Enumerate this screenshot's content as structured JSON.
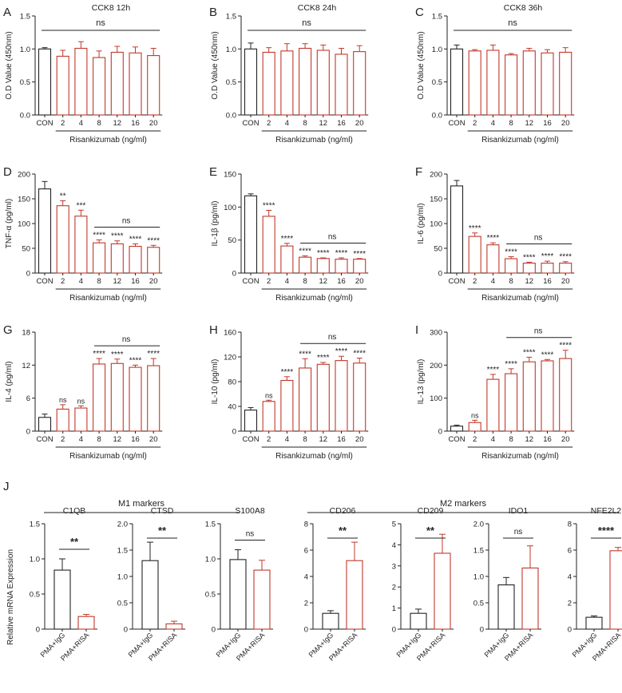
{
  "colors": {
    "control": "#222222",
    "treated": "#c0392b",
    "axis": "#222222"
  },
  "x_categories": [
    "CON",
    "2",
    "4",
    "8",
    "12",
    "16",
    "20"
  ],
  "x_axis_label": "Risankizumab (ng/ml)",
  "significance_ns": "ns",
  "section_j": {
    "m1_label": "M1 markers",
    "m2_label": "M2 markers",
    "ylabel": "Relative mRNA Expression",
    "groups": [
      "PMA+IgG",
      "PMA+RISA"
    ]
  },
  "chart_data": [
    {
      "type": "bar",
      "panel": "A",
      "title": "CCK8 12h",
      "ylabel": "O.D Value (450nm)",
      "ylim": [
        0,
        1.5
      ],
      "yticks": [
        "0.0",
        "0.5",
        "1.0",
        "1.5"
      ],
      "values": [
        1.0,
        0.89,
        1.01,
        0.87,
        0.95,
        0.94,
        0.9
      ],
      "errors": [
        0.02,
        0.09,
        0.1,
        0.1,
        0.09,
        0.09,
        0.11
      ],
      "annotations": [
        "",
        "",
        "",
        "",
        "",
        "",
        ""
      ],
      "global_sig": "ns",
      "group_sig": ""
    },
    {
      "type": "bar",
      "panel": "B",
      "title": "CCK8 24h",
      "ylabel": "O.D Value (450nm)",
      "ylim": [
        0,
        1.5
      ],
      "yticks": [
        "0.0",
        "0.5",
        "1.0",
        "1.5"
      ],
      "values": [
        1.0,
        0.95,
        0.97,
        1.01,
        0.98,
        0.92,
        0.96
      ],
      "errors": [
        0.09,
        0.07,
        0.11,
        0.07,
        0.08,
        0.09,
        0.09
      ],
      "annotations": [
        "",
        "",
        "",
        "",
        "",
        "",
        ""
      ],
      "global_sig": "ns",
      "group_sig": ""
    },
    {
      "type": "bar",
      "panel": "C",
      "title": "CCK8 36h",
      "ylabel": "O.D Value (450nm)",
      "ylim": [
        0,
        1.5
      ],
      "yticks": [
        "0.0",
        "0.5",
        "1.0",
        "1.5"
      ],
      "values": [
        1.0,
        0.97,
        0.98,
        0.91,
        0.97,
        0.94,
        0.95
      ],
      "errors": [
        0.06,
        0.02,
        0.08,
        0.02,
        0.04,
        0.05,
        0.07
      ],
      "annotations": [
        "",
        "",
        "",
        "",
        "",
        "",
        ""
      ],
      "global_sig": "ns",
      "group_sig": ""
    },
    {
      "type": "bar",
      "panel": "D",
      "title": "",
      "ylabel": "TNF-α (pg/ml)",
      "ylim": [
        0,
        200
      ],
      "yticks": [
        "0",
        "50",
        "100",
        "150",
        "200"
      ],
      "values": [
        170,
        136,
        115,
        61,
        59,
        54,
        52
      ],
      "errors": [
        15,
        10,
        12,
        6,
        6,
        5,
        4
      ],
      "annotations": [
        "",
        "**",
        "***",
        "****",
        "****",
        "****",
        "****"
      ],
      "global_sig": "",
      "group_sig": "ns"
    },
    {
      "type": "bar",
      "panel": "E",
      "title": "",
      "ylabel": "IL-1β (pg/ml)",
      "ylim": [
        0,
        150
      ],
      "yticks": [
        "0",
        "50",
        "100",
        "150"
      ],
      "values": [
        117,
        86,
        41,
        24,
        22,
        21,
        21
      ],
      "errors": [
        3,
        9,
        4,
        2,
        1,
        2,
        1
      ],
      "annotations": [
        "",
        "****",
        "****",
        "****",
        "****",
        "****",
        "****"
      ],
      "global_sig": "",
      "group_sig": "ns"
    },
    {
      "type": "bar",
      "panel": "F",
      "title": "",
      "ylabel": "IL-6 (pg/ml)",
      "ylim": [
        0,
        200
      ],
      "yticks": [
        "0",
        "50",
        "100",
        "150",
        "200"
      ],
      "values": [
        176,
        74,
        57,
        29,
        20,
        20,
        20
      ],
      "errors": [
        11,
        7,
        4,
        4,
        2,
        4,
        3
      ],
      "annotations": [
        "",
        "****",
        "****",
        "****",
        "****",
        "****",
        "****"
      ],
      "global_sig": "",
      "group_sig": "ns"
    },
    {
      "type": "bar",
      "panel": "G",
      "title": "",
      "ylabel": "IL-4 (pg/ml)",
      "ylim": [
        0,
        18
      ],
      "yticks": [
        "0",
        "6",
        "12",
        "18"
      ],
      "values": [
        2.5,
        4.0,
        4.2,
        12.2,
        12.3,
        11.6,
        11.9
      ],
      "errors": [
        0.6,
        0.8,
        0.4,
        1.0,
        0.8,
        0.4,
        1.3
      ],
      "annotations": [
        "",
        "ns",
        "ns",
        "****",
        "****",
        "****",
        "****"
      ],
      "global_sig": "",
      "group_sig": "ns"
    },
    {
      "type": "bar",
      "panel": "H",
      "title": "",
      "ylabel": "IL-10 (pg/ml)",
      "ylim": [
        0,
        160
      ],
      "yticks": [
        "0",
        "40",
        "80",
        "120",
        "160"
      ],
      "values": [
        34,
        48,
        82,
        102,
        108,
        114,
        110
      ],
      "errors": [
        4,
        2,
        6,
        15,
        3,
        7,
        8
      ],
      "annotations": [
        "",
        "ns",
        "****",
        "****",
        "****",
        "****",
        "****"
      ],
      "global_sig": "",
      "group_sig": "ns"
    },
    {
      "type": "bar",
      "panel": "I",
      "title": "",
      "ylabel": "IL-13 (pg/ml)",
      "ylim": [
        0,
        300
      ],
      "yticks": [
        "0",
        "100",
        "200",
        "300"
      ],
      "values": [
        15,
        26,
        157,
        174,
        210,
        213,
        220
      ],
      "errors": [
        3,
        7,
        15,
        15,
        14,
        4,
        25
      ],
      "annotations": [
        "",
        "ns",
        "****",
        "****",
        "****",
        "****",
        "****"
      ],
      "global_sig": "",
      "group_sig": "ns"
    },
    {
      "type": "bar",
      "panel": "J",
      "title": "C1QB",
      "ylim": [
        0,
        1.5
      ],
      "yticks": [
        "0",
        "0.5",
        "1.0",
        "1.5"
      ],
      "values": [
        0.84,
        0.18
      ],
      "errors": [
        0.16,
        0.03
      ],
      "sig": "**"
    },
    {
      "type": "bar",
      "panel": "J",
      "title": "CTSD",
      "ylim": [
        0,
        2.0
      ],
      "yticks": [
        "0",
        "0.5",
        "1.0",
        "1.5",
        "2.0"
      ],
      "values": [
        1.3,
        0.1
      ],
      "errors": [
        0.35,
        0.05
      ],
      "sig": "**"
    },
    {
      "type": "bar",
      "panel": "J",
      "title": "S100A8",
      "ylim": [
        0,
        1.5
      ],
      "yticks": [
        "0",
        "0.5",
        "1.0",
        "1.5"
      ],
      "values": [
        0.99,
        0.84
      ],
      "errors": [
        0.14,
        0.14
      ],
      "sig": "ns"
    },
    {
      "type": "bar",
      "panel": "J",
      "title": "CD206",
      "ylim": [
        0,
        8
      ],
      "yticks": [
        "0",
        "2",
        "4",
        "6",
        "8"
      ],
      "values": [
        1.2,
        5.2
      ],
      "errors": [
        0.2,
        1.4
      ],
      "sig": "**"
    },
    {
      "type": "bar",
      "panel": "J",
      "title": "CD209",
      "ylim": [
        0,
        5
      ],
      "yticks": [
        "0",
        "1",
        "2",
        "3",
        "4",
        "5"
      ],
      "values": [
        0.75,
        3.6
      ],
      "errors": [
        0.2,
        0.9
      ],
      "sig": "**"
    },
    {
      "type": "bar",
      "panel": "J",
      "title": "IDO1",
      "ylim": [
        0,
        2.0
      ],
      "yticks": [
        "0",
        "0.5",
        "1.0",
        "1.5",
        "2.0"
      ],
      "values": [
        0.84,
        1.16
      ],
      "errors": [
        0.14,
        0.42
      ],
      "sig": "ns"
    },
    {
      "type": "bar",
      "panel": "J",
      "title": "NFE2L2",
      "ylim": [
        0,
        8
      ],
      "yticks": [
        "0",
        "2",
        "4",
        "6",
        "8"
      ],
      "values": [
        0.9,
        5.95
      ],
      "errors": [
        0.1,
        0.25
      ],
      "sig": "****"
    }
  ]
}
